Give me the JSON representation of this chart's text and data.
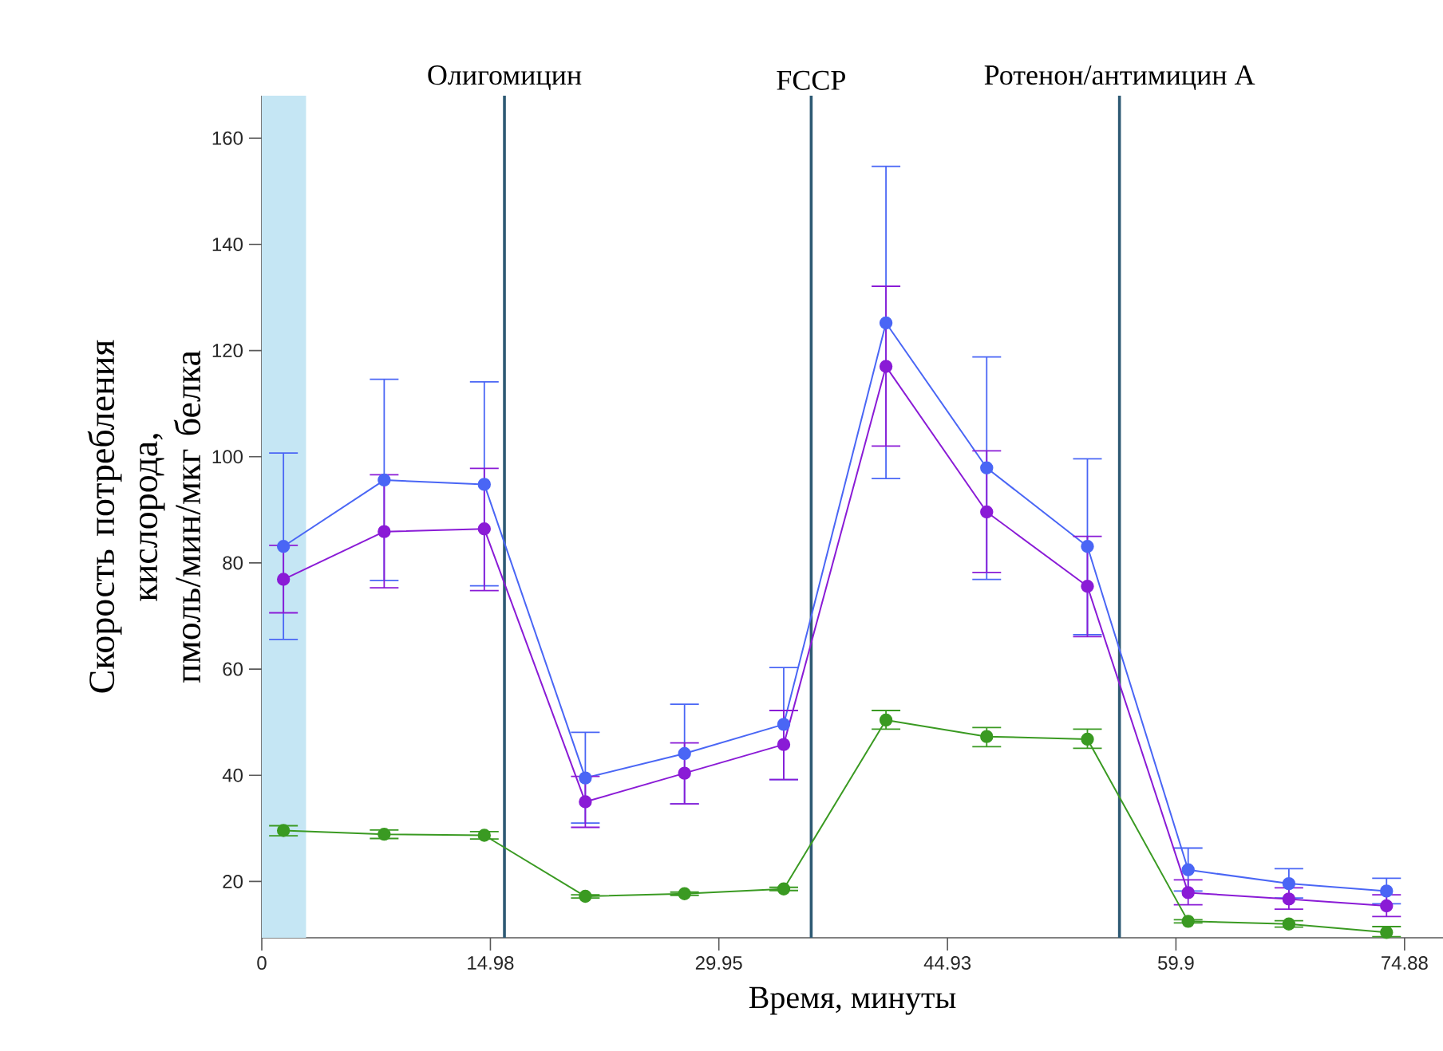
{
  "chart_data": {
    "type": "line",
    "xlabel": "Время, минуты",
    "ylabel": "Скорость потребления кислорода, пмоль/мин/мкг белка",
    "x": [
      1.42,
      8.02,
      14.58,
      21.2,
      27.7,
      34.2,
      40.9,
      47.5,
      54.1,
      60.7,
      67.3,
      73.7
    ],
    "series": [
      {
        "color": "#4a66f5",
        "values": [
          83.1,
          95.6,
          94.8,
          39.5,
          44.1,
          49.6,
          125.2,
          97.9,
          83.1,
          22.2,
          19.6,
          18.2
        ],
        "errors": [
          [
            65.6,
            100.7
          ],
          [
            76.7,
            114.6
          ],
          [
            75.7,
            114.1
          ],
          [
            31.0,
            48.1
          ],
          [
            34.6,
            53.4
          ],
          [
            39.2,
            60.3
          ],
          [
            95.9,
            154.7
          ],
          [
            76.9,
            118.8
          ],
          [
            66.5,
            99.6
          ],
          [
            18.2,
            26.3
          ],
          [
            16.9,
            22.4
          ],
          [
            15.8,
            20.6
          ]
        ]
      },
      {
        "color": "#8a1bd6",
        "values": [
          76.9,
          85.9,
          86.4,
          35.0,
          40.4,
          45.8,
          117.0,
          89.6,
          75.6,
          17.9,
          16.7,
          15.4
        ],
        "errors": [
          [
            70.6,
            83.3
          ],
          [
            75.3,
            96.6
          ],
          [
            74.8,
            97.8
          ],
          [
            30.2,
            39.8
          ],
          [
            34.6,
            46.1
          ],
          [
            39.2,
            52.2
          ],
          [
            102.0,
            132.1
          ],
          [
            78.2,
            101.1
          ],
          [
            66.1,
            85.0
          ],
          [
            15.6,
            20.3
          ],
          [
            14.8,
            18.8
          ],
          [
            13.4,
            17.5
          ]
        ]
      },
      {
        "color": "#3a9a22",
        "values": [
          29.6,
          28.9,
          28.7,
          17.2,
          17.7,
          18.6,
          50.4,
          47.3,
          46.8,
          12.5,
          12.0,
          10.4
        ],
        "errors": [
          [
            28.6,
            30.5
          ],
          [
            28.1,
            29.7
          ],
          [
            28.0,
            29.4
          ],
          [
            16.9,
            17.5
          ],
          [
            17.4,
            18.0
          ],
          [
            18.3,
            18.9
          ],
          [
            48.7,
            52.2
          ],
          [
            45.4,
            49.0
          ],
          [
            45.1,
            48.7
          ],
          [
            12.2,
            12.8
          ],
          [
            11.4,
            12.6
          ],
          [
            9.6,
            11.5
          ]
        ]
      }
    ],
    "xlim": [
      0,
      77.4
    ],
    "ylim": [
      9.4,
      168
    ],
    "xticks": [
      0,
      14.98,
      29.95,
      44.93,
      59.9,
      74.88
    ],
    "yticks": [
      20,
      40,
      60,
      80,
      100,
      120,
      140,
      160
    ],
    "marker": "circle",
    "line_style": "solid",
    "grid": false,
    "ref_lines": [
      {
        "axis": "x",
        "value": 15.9,
        "label": "Олигомицин",
        "color": "#2e5a74"
      },
      {
        "axis": "x",
        "value": 36.0,
        "label": "FCCP",
        "color": "#2e5a74"
      },
      {
        "axis": "x",
        "value": 56.2,
        "label": "Ротенон/антимицин А",
        "color": "#2e5a74"
      }
    ],
    "bands": [
      {
        "axis": "x",
        "from": 0,
        "to": 2.9,
        "color": "#c5e6f4"
      }
    ]
  }
}
